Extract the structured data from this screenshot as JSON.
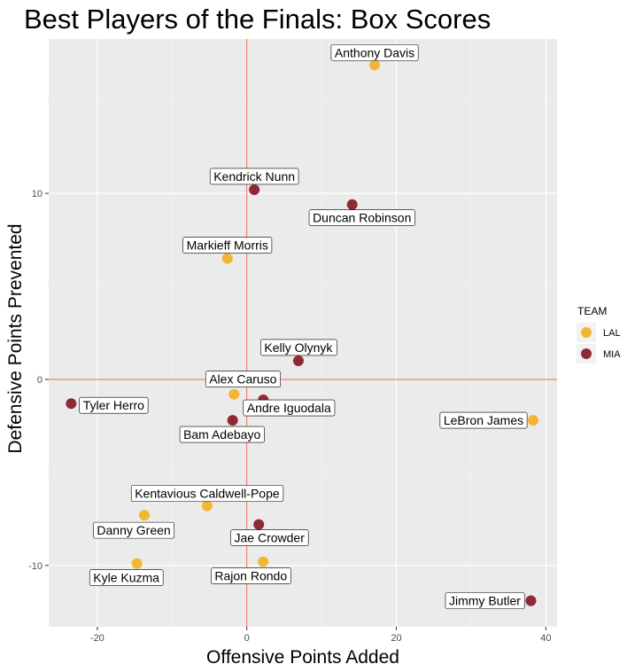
{
  "chart_data": {
    "type": "scatter",
    "title": "Best Players of the Finals: Box Scores",
    "xlabel": "Offensive Points Added",
    "ylabel": "Defensive Points Prevented",
    "xlim": [
      -26.5,
      41.5
    ],
    "ylim": [
      -13.3,
      18.3
    ],
    "x_ticks": [
      -20,
      0,
      20,
      40
    ],
    "y_ticks": [
      -10,
      0,
      10
    ],
    "grid": true,
    "reference_lines": {
      "x": 0,
      "y": 0,
      "color": "#f4654a"
    },
    "legend": {
      "title": "TEAM",
      "position": "right",
      "entries": [
        {
          "name": "LAL",
          "color": "#f3b634"
        },
        {
          "name": "MIA",
          "color": "#8e2a35"
        }
      ]
    },
    "points": [
      {
        "name": "Anthony Davis",
        "team": "LAL",
        "x": 17.1,
        "y": 16.9
      },
      {
        "name": "Kendrick Nunn",
        "team": "MIA",
        "x": 1.0,
        "y": 10.2
      },
      {
        "name": "Duncan Robinson",
        "team": "MIA",
        "x": 14.1,
        "y": 9.4
      },
      {
        "name": "Markieff Morris",
        "team": "LAL",
        "x": -2.6,
        "y": 6.5
      },
      {
        "name": "Kelly Olynyk",
        "team": "MIA",
        "x": 6.9,
        "y": 1.0
      },
      {
        "name": "Alex Caruso",
        "team": "LAL",
        "x": -1.7,
        "y": -0.8
      },
      {
        "name": "Andre Iguodala",
        "team": "MIA",
        "x": 2.2,
        "y": -1.1
      },
      {
        "name": "Tyler Herro",
        "team": "MIA",
        "x": -23.5,
        "y": -1.3
      },
      {
        "name": "LeBron James",
        "team": "LAL",
        "x": 38.3,
        "y": -2.2
      },
      {
        "name": "Bam Adebayo",
        "team": "MIA",
        "x": -1.9,
        "y": -2.2
      },
      {
        "name": "Kentavious Caldwell-Pope",
        "team": "LAL",
        "x": -5.3,
        "y": -6.8
      },
      {
        "name": "Danny Green",
        "team": "LAL",
        "x": -13.7,
        "y": -7.3
      },
      {
        "name": "Jae Crowder",
        "team": "MIA",
        "x": 1.6,
        "y": -7.8
      },
      {
        "name": "Kyle Kuzma",
        "team": "LAL",
        "x": -14.7,
        "y": -9.9
      },
      {
        "name": "Rajon Rondo",
        "team": "LAL",
        "x": 2.2,
        "y": -9.8
      },
      {
        "name": "Jimmy Butler",
        "team": "MIA",
        "x": 38.0,
        "y": -11.9
      }
    ]
  }
}
